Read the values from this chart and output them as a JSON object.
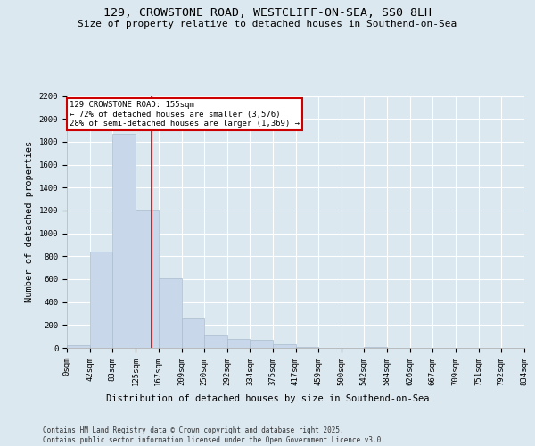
{
  "title": "129, CROWSTONE ROAD, WESTCLIFF-ON-SEA, SS0 8LH",
  "subtitle": "Size of property relative to detached houses in Southend-on-Sea",
  "xlabel": "Distribution of detached houses by size in Southend-on-Sea",
  "ylabel": "Number of detached properties",
  "bar_color": "#c8d8ea",
  "bar_edge_color": "#aabcce",
  "background_color": "#dce8f0",
  "fig_background_color": "#dce8f0",
  "grid_color": "#ffffff",
  "annotation_text_line1": "129 CROWSTONE ROAD: 155sqm",
  "annotation_text_line2": "← 72% of detached houses are smaller (3,576)",
  "annotation_text_line3": "28% of semi-detached houses are larger (1,369) →",
  "annotation_box_color": "#ffffff",
  "annotation_border_color": "#cc0000",
  "vline_color": "#cc0000",
  "vline_x": 155,
  "footer": "Contains HM Land Registry data © Crown copyright and database right 2025.\nContains public sector information licensed under the Open Government Licence v3.0.",
  "bin_edges": [
    0,
    42,
    83,
    125,
    167,
    209,
    250,
    292,
    334,
    375,
    417,
    459,
    500,
    542,
    584,
    626,
    667,
    709,
    751,
    792,
    834
  ],
  "bar_heights": [
    20,
    840,
    1870,
    1210,
    610,
    260,
    110,
    75,
    70,
    30,
    5,
    0,
    0,
    5,
    0,
    0,
    0,
    0,
    0,
    0
  ],
  "ylim": [
    0,
    2200
  ],
  "yticks": [
    0,
    200,
    400,
    600,
    800,
    1000,
    1200,
    1400,
    1600,
    1800,
    2000,
    2200
  ],
  "title_fontsize": 9.5,
  "subtitle_fontsize": 8,
  "tick_fontsize": 6.5,
  "ylabel_fontsize": 7.5,
  "xlabel_fontsize": 7.5,
  "footer_fontsize": 5.5
}
